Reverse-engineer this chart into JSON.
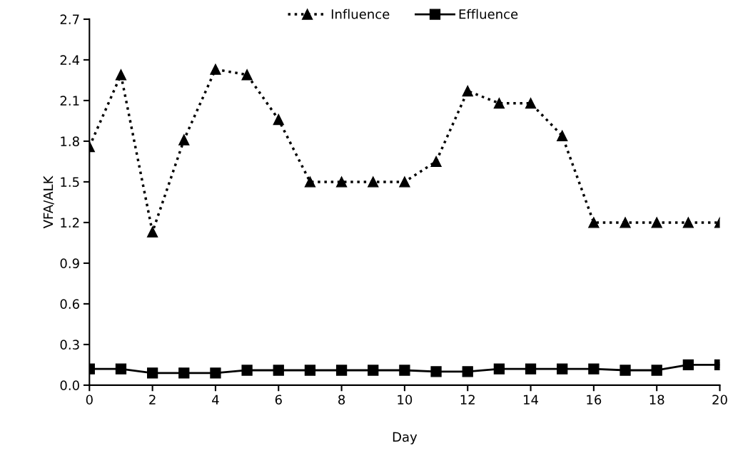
{
  "chart_data": {
    "type": "line",
    "xlabel": "Day",
    "ylabel": "VFA/ALK",
    "x": [
      0,
      1,
      2,
      3,
      4,
      5,
      6,
      7,
      8,
      9,
      10,
      11,
      12,
      13,
      14,
      15,
      16,
      17,
      18,
      19,
      20
    ],
    "series": [
      {
        "name": "Influence",
        "color": "#000000",
        "marker": "triangle",
        "line_style": "dotted",
        "values": [
          1.76,
          2.29,
          1.13,
          1.81,
          2.33,
          2.29,
          1.96,
          1.5,
          1.5,
          1.5,
          1.5,
          1.65,
          2.17,
          2.08,
          2.08,
          1.84,
          1.2,
          1.2,
          1.2,
          1.2,
          1.2
        ]
      },
      {
        "name": "Effluence",
        "color": "#000000",
        "marker": "square",
        "line_style": "solid",
        "values": [
          0.12,
          0.12,
          0.09,
          0.09,
          0.09,
          0.11,
          0.11,
          0.11,
          0.11,
          0.11,
          0.11,
          0.1,
          0.1,
          0.12,
          0.12,
          0.12,
          0.12,
          0.11,
          0.11,
          0.15,
          0.15
        ],
        "errors": [
          null,
          null,
          null,
          null,
          null,
          null,
          null,
          null,
          null,
          null,
          null,
          null,
          null,
          0.03,
          0.03,
          0.03,
          0.03,
          null,
          null,
          0.02,
          0.02
        ]
      }
    ],
    "xlim": [
      0,
      20
    ],
    "xticks": [
      0,
      2,
      4,
      6,
      8,
      10,
      12,
      14,
      16,
      18,
      20
    ],
    "ylim": [
      0,
      2.7
    ],
    "yticks": [
      {
        "value": 0,
        "label": "0.0"
      },
      {
        "value": 0.3,
        "label": "0.3"
      },
      {
        "value": 0.6,
        "label": "0.6"
      },
      {
        "value": 0.9,
        "label": "0.9"
      },
      {
        "value": 1.2,
        "label": "1.2"
      },
      {
        "value": 1.5,
        "label": "1.5"
      },
      {
        "value": 1.8,
        "label": "1.8"
      },
      {
        "value": 2.1,
        "label": "2.1"
      },
      {
        "value": 2.4,
        "label": "2.4"
      },
      {
        "value": 2.7,
        "label": "2.7"
      }
    ],
    "grid": false,
    "legend": "top"
  }
}
